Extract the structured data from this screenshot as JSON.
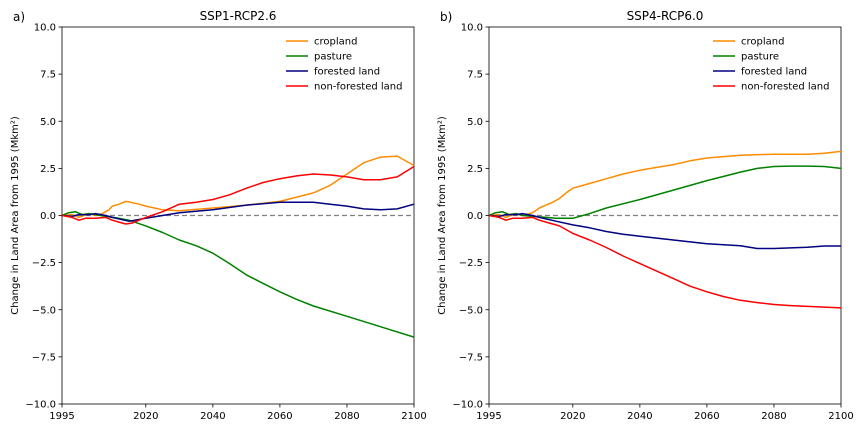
{
  "chart_data": [
    {
      "type": "line",
      "panel_label": "a)",
      "title": "SSP1-RCP2.6",
      "xlabel": "",
      "ylabel": "Change in Land Area from 1995 (Mkm²)",
      "xlim": [
        1995,
        2100
      ],
      "ylim": [
        -10,
        10
      ],
      "xticks": [
        1995,
        2020,
        2040,
        2060,
        2080,
        2100
      ],
      "yticks": [
        -10.0,
        -7.5,
        -5.0,
        -2.5,
        0.0,
        2.5,
        5.0,
        7.5,
        10.0
      ],
      "xtick_labels": [
        "1995",
        "2020",
        "2040",
        "2060",
        "2080",
        "2100"
      ],
      "ytick_labels": [
        "−10.0",
        "−7.5",
        "−5.0",
        "−2.5",
        "0.0",
        "2.5",
        "5.0",
        "7.5",
        "10.0"
      ],
      "reference_line": {
        "y": 0,
        "style": "dashed",
        "color": "#808080"
      },
      "legend_position": "top-right",
      "series": [
        {
          "name": "cropland",
          "color": "#ff8c00",
          "x": [
            1995,
            1998,
            2000,
            2003,
            2005,
            2007,
            2009,
            2010,
            2012,
            2014,
            2015,
            2016,
            2018,
            2020,
            2025,
            2030,
            2040,
            2050,
            2060,
            2070,
            2075,
            2080,
            2085,
            2090,
            2095,
            2100
          ],
          "y": [
            0,
            0.05,
            -0.1,
            0.1,
            0.0,
            0.1,
            0.3,
            0.5,
            0.6,
            0.75,
            0.72,
            0.68,
            0.6,
            0.5,
            0.3,
            0.25,
            0.4,
            0.55,
            0.75,
            1.2,
            1.6,
            2.2,
            2.8,
            3.1,
            3.15,
            2.65
          ]
        },
        {
          "name": "pasture",
          "color": "#008000",
          "x": [
            1995,
            1997,
            1999,
            2001,
            2003,
            2005,
            2008,
            2012,
            2015,
            2020,
            2025,
            2030,
            2035,
            2040,
            2045,
            2050,
            2055,
            2060,
            2065,
            2070,
            2080,
            2090,
            2100
          ],
          "y": [
            0,
            0.15,
            0.2,
            0.05,
            0.1,
            0.05,
            -0.05,
            -0.15,
            -0.25,
            -0.55,
            -0.9,
            -1.3,
            -1.6,
            -2.0,
            -2.55,
            -3.15,
            -3.6,
            -4.05,
            -4.45,
            -4.8,
            -5.35,
            -5.9,
            -6.45
          ]
        },
        {
          "name": "forested land",
          "color": "#000080",
          "x": [
            1995,
            1998,
            2000,
            2003,
            2005,
            2008,
            2010,
            2015,
            2020,
            2030,
            2040,
            2050,
            2060,
            2070,
            2075,
            2080,
            2085,
            2090,
            2095,
            2100
          ],
          "y": [
            0,
            -0.05,
            0.05,
            0.05,
            0.1,
            0.0,
            -0.1,
            -0.3,
            -0.15,
            0.15,
            0.3,
            0.55,
            0.7,
            0.7,
            0.6,
            0.5,
            0.35,
            0.3,
            0.35,
            0.6
          ]
        },
        {
          "name": "non-forested land",
          "color": "#ff0000",
          "x": [
            1995,
            1998,
            2000,
            2002,
            2005,
            2008,
            2010,
            2012,
            2014,
            2016,
            2018,
            2020,
            2025,
            2030,
            2035,
            2040,
            2045,
            2050,
            2055,
            2060,
            2065,
            2070,
            2075,
            2080,
            2085,
            2090,
            2095,
            2100
          ],
          "y": [
            0,
            -0.1,
            -0.25,
            -0.15,
            -0.15,
            -0.1,
            -0.25,
            -0.35,
            -0.45,
            -0.4,
            -0.25,
            -0.1,
            0.2,
            0.6,
            0.7,
            0.85,
            1.1,
            1.45,
            1.75,
            1.95,
            2.1,
            2.2,
            2.15,
            2.05,
            1.9,
            1.9,
            2.05,
            2.6
          ]
        }
      ]
    },
    {
      "type": "line",
      "panel_label": "b)",
      "title": "SSP4-RCP6.0",
      "xlabel": "",
      "ylabel": "Change in Land Area from 1995 (Mkm²)",
      "xlim": [
        1995,
        2100
      ],
      "ylim": [
        -10,
        10
      ],
      "xticks": [
        1995,
        2020,
        2040,
        2060,
        2080,
        2100
      ],
      "yticks": [
        -10.0,
        -7.5,
        -5.0,
        -2.5,
        0.0,
        2.5,
        5.0,
        7.5,
        10.0
      ],
      "xtick_labels": [
        "1995",
        "2020",
        "2040",
        "2060",
        "2080",
        "2100"
      ],
      "ytick_labels": [
        "−10.0",
        "−7.5",
        "−5.0",
        "−2.5",
        "0.0",
        "2.5",
        "5.0",
        "7.5",
        "10.0"
      ],
      "reference_line": {
        "y": 0,
        "style": "dashed",
        "color": "#808080"
      },
      "legend_position": "top-right",
      "series": [
        {
          "name": "cropland",
          "color": "#ff8c00",
          "x": [
            1995,
            1998,
            2000,
            2003,
            2005,
            2008,
            2010,
            2012,
            2014,
            2016,
            2018,
            2020,
            2025,
            2030,
            2035,
            2040,
            2045,
            2050,
            2055,
            2060,
            2070,
            2080,
            2090,
            2095,
            2100
          ],
          "y": [
            0,
            0.05,
            -0.1,
            0.1,
            0.0,
            0.15,
            0.4,
            0.55,
            0.7,
            0.9,
            1.2,
            1.45,
            1.7,
            1.95,
            2.2,
            2.4,
            2.55,
            2.7,
            2.9,
            3.05,
            3.2,
            3.25,
            3.25,
            3.3,
            3.4
          ]
        },
        {
          "name": "pasture",
          "color": "#008000",
          "x": [
            1995,
            1997,
            1999,
            2001,
            2003,
            2005,
            2008,
            2012,
            2015,
            2020,
            2025,
            2030,
            2040,
            2050,
            2060,
            2070,
            2075,
            2080,
            2085,
            2090,
            2095,
            2100
          ],
          "y": [
            0,
            0.15,
            0.2,
            0.05,
            0.1,
            0.0,
            -0.05,
            -0.1,
            -0.15,
            -0.15,
            0.1,
            0.4,
            0.85,
            1.35,
            1.85,
            2.3,
            2.5,
            2.6,
            2.62,
            2.62,
            2.6,
            2.5
          ]
        },
        {
          "name": "forested land",
          "color": "#000080",
          "x": [
            1995,
            1998,
            2000,
            2003,
            2005,
            2008,
            2010,
            2015,
            2020,
            2025,
            2030,
            2035,
            2040,
            2045,
            2050,
            2055,
            2060,
            2065,
            2070,
            2075,
            2080,
            2085,
            2090,
            2095,
            2100
          ],
          "y": [
            0,
            -0.05,
            0.05,
            0.05,
            0.1,
            0.0,
            -0.1,
            -0.3,
            -0.5,
            -0.65,
            -0.85,
            -1.0,
            -1.1,
            -1.2,
            -1.3,
            -1.4,
            -1.5,
            -1.55,
            -1.6,
            -1.75,
            -1.75,
            -1.72,
            -1.68,
            -1.62,
            -1.62
          ]
        },
        {
          "name": "non-forested land",
          "color": "#ff0000",
          "x": [
            1995,
            1998,
            2000,
            2002,
            2005,
            2008,
            2010,
            2012,
            2014,
            2016,
            2018,
            2020,
            2025,
            2030,
            2035,
            2040,
            2045,
            2050,
            2055,
            2060,
            2065,
            2070,
            2075,
            2080,
            2085,
            2090,
            2095,
            2100
          ],
          "y": [
            0,
            -0.1,
            -0.25,
            -0.15,
            -0.15,
            -0.1,
            -0.25,
            -0.35,
            -0.45,
            -0.55,
            -0.75,
            -0.95,
            -1.3,
            -1.7,
            -2.15,
            -2.55,
            -2.95,
            -3.35,
            -3.75,
            -4.05,
            -4.3,
            -4.5,
            -4.62,
            -4.72,
            -4.78,
            -4.82,
            -4.86,
            -4.9
          ]
        }
      ]
    }
  ]
}
